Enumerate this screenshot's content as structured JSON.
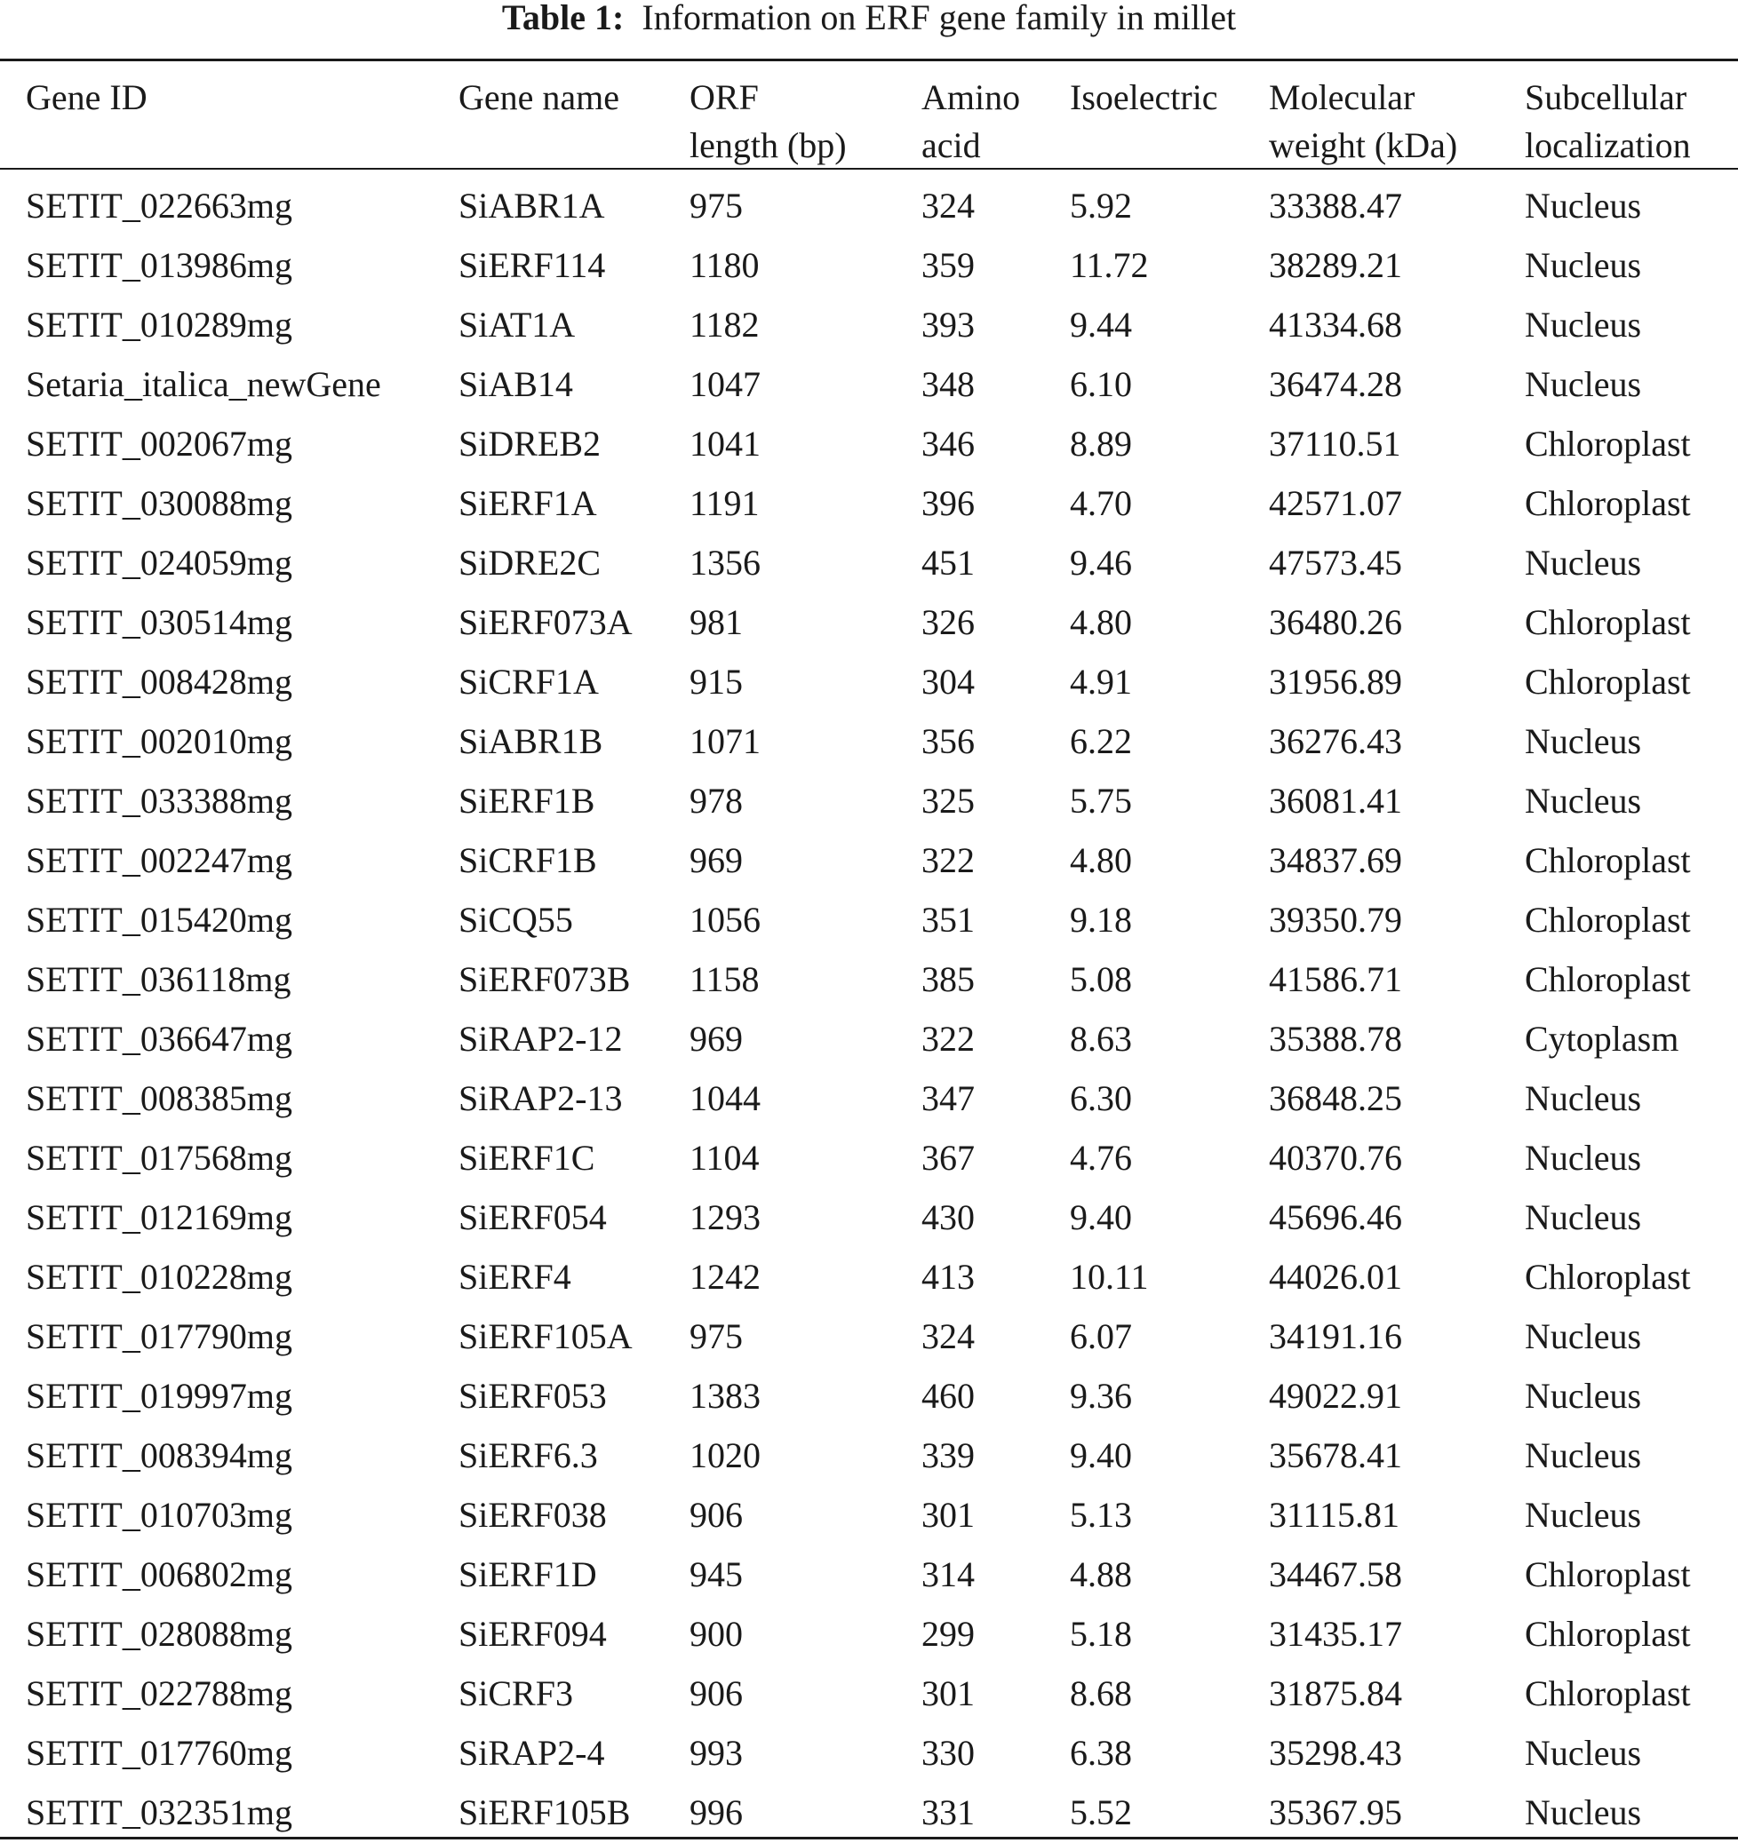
{
  "title": {
    "label": "Table 1:",
    "text": "Information on ERF gene family in millet"
  },
  "table": {
    "headers": [
      [
        "Gene ID"
      ],
      [
        "Gene name"
      ],
      [
        "ORF",
        "length (bp)"
      ],
      [
        "Amino",
        "acid"
      ],
      [
        "Isoelectric"
      ],
      [
        "Molecular",
        "weight (kDa)"
      ],
      [
        "Subcellular",
        "localization"
      ]
    ],
    "rows": [
      [
        "SETIT_022663mg",
        "SiABR1A",
        "975",
        "324",
        "5.92",
        "33388.47",
        "Nucleus"
      ],
      [
        "SETIT_013986mg",
        "SiERF114",
        "1180",
        "359",
        "11.72",
        "38289.21",
        "Nucleus"
      ],
      [
        "SETIT_010289mg",
        "SiAT1A",
        "1182",
        "393",
        "9.44",
        "41334.68",
        "Nucleus"
      ],
      [
        "Setaria_italica_newGene",
        "SiAB14",
        "1047",
        "348",
        "6.10",
        "36474.28",
        "Nucleus"
      ],
      [
        "SETIT_002067mg",
        "SiDREB2",
        "1041",
        "346",
        "8.89",
        "37110.51",
        "Chloroplast"
      ],
      [
        "SETIT_030088mg",
        "SiERF1A",
        "1191",
        "396",
        "4.70",
        "42571.07",
        "Chloroplast"
      ],
      [
        "SETIT_024059mg",
        "SiDRE2C",
        "1356",
        "451",
        "9.46",
        "47573.45",
        "Nucleus"
      ],
      [
        "SETIT_030514mg",
        "SiERF073A",
        "981",
        "326",
        "4.80",
        "36480.26",
        "Chloroplast"
      ],
      [
        "SETIT_008428mg",
        "SiCRF1A",
        "915",
        "304",
        "4.91",
        "31956.89",
        "Chloroplast"
      ],
      [
        "SETIT_002010mg",
        "SiABR1B",
        "1071",
        "356",
        "6.22",
        "36276.43",
        "Nucleus"
      ],
      [
        "SETIT_033388mg",
        "SiERF1B",
        "978",
        "325",
        "5.75",
        "36081.41",
        "Nucleus"
      ],
      [
        "SETIT_002247mg",
        "SiCRF1B",
        "969",
        "322",
        "4.80",
        "34837.69",
        "Chloroplast"
      ],
      [
        "SETIT_015420mg",
        "SiCQ55",
        "1056",
        "351",
        "9.18",
        "39350.79",
        "Chloroplast"
      ],
      [
        "SETIT_036118mg",
        "SiERF073B",
        "1158",
        "385",
        "5.08",
        "41586.71",
        "Chloroplast"
      ],
      [
        "SETIT_036647mg",
        "SiRAP2-12",
        "969",
        "322",
        "8.63",
        "35388.78",
        "Cytoplasm"
      ],
      [
        "SETIT_008385mg",
        "SiRAP2-13",
        "1044",
        "347",
        "6.30",
        "36848.25",
        "Nucleus"
      ],
      [
        "SETIT_017568mg",
        "SiERF1C",
        "1104",
        "367",
        "4.76",
        "40370.76",
        "Nucleus"
      ],
      [
        "SETIT_012169mg",
        "SiERF054",
        "1293",
        "430",
        "9.40",
        "45696.46",
        "Nucleus"
      ],
      [
        "SETIT_010228mg",
        "SiERF4",
        "1242",
        "413",
        "10.11",
        "44026.01",
        "Chloroplast"
      ],
      [
        "SETIT_017790mg",
        "SiERF105A",
        "975",
        "324",
        "6.07",
        "34191.16",
        "Nucleus"
      ],
      [
        "SETIT_019997mg",
        "SiERF053",
        "1383",
        "460",
        "9.36",
        "49022.91",
        "Nucleus"
      ],
      [
        "SETIT_008394mg",
        "SiERF6.3",
        "1020",
        "339",
        "9.40",
        "35678.41",
        "Nucleus"
      ],
      [
        "SETIT_010703mg",
        "SiERF038",
        "906",
        "301",
        "5.13",
        "31115.81",
        "Nucleus"
      ],
      [
        "SETIT_006802mg",
        "SiERF1D",
        "945",
        "314",
        "4.88",
        "34467.58",
        "Chloroplast"
      ],
      [
        "SETIT_028088mg",
        "SiERF094",
        "900",
        "299",
        "5.18",
        "31435.17",
        "Chloroplast"
      ],
      [
        "SETIT_022788mg",
        "SiCRF3",
        "906",
        "301",
        "8.68",
        "31875.84",
        "Chloroplast"
      ],
      [
        "SETIT_017760mg",
        "SiRAP2-4",
        "993",
        "330",
        "6.38",
        "35298.43",
        "Nucleus"
      ],
      [
        "SETIT_032351mg",
        "SiERF105B",
        "996",
        "331",
        "5.52",
        "35367.95",
        "Nucleus"
      ]
    ]
  }
}
